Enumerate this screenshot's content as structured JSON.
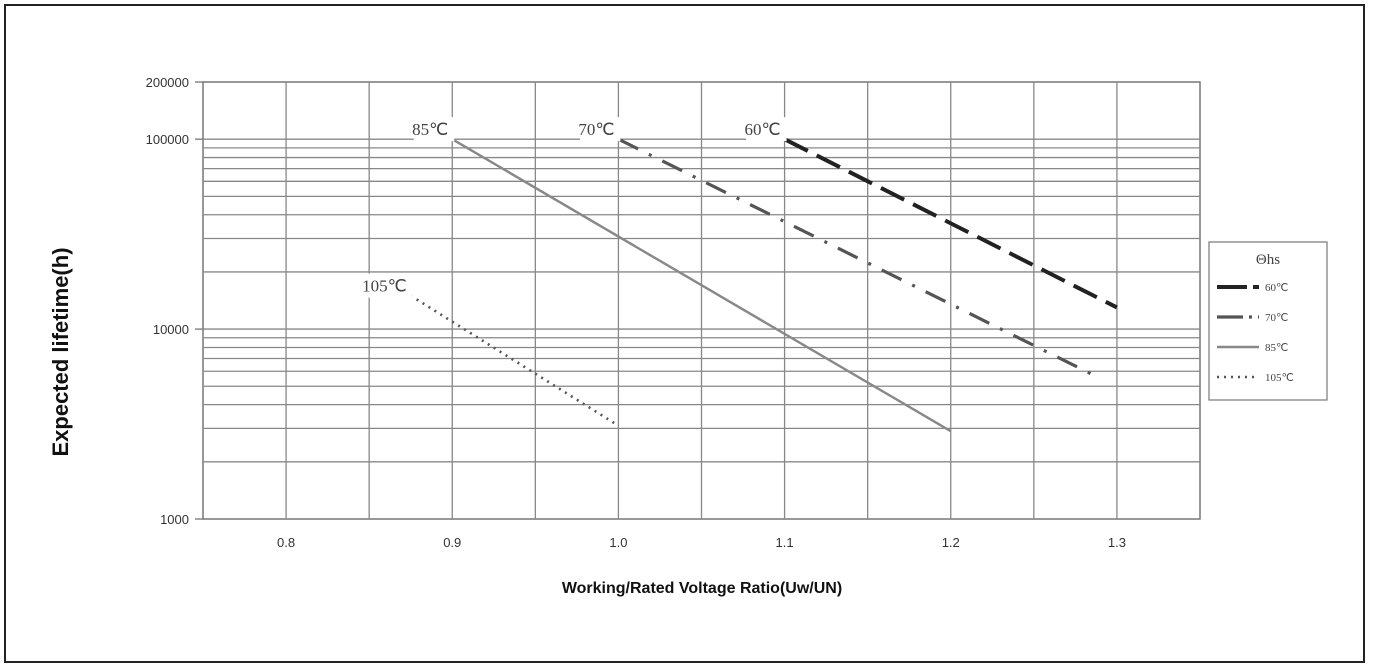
{
  "chart_data": {
    "type": "line",
    "title": "",
    "xlabel": "Working/Rated Voltage Ratio(Uw/UN)",
    "ylabel": "Expected lifetime(h)",
    "xlim": [
      0.75,
      1.35
    ],
    "ylim": [
      1000,
      200000
    ],
    "yscale": "log",
    "grid": true,
    "x_ticks": [
      0.8,
      0.9,
      1.0,
      1.1,
      1.2,
      1.3
    ],
    "x_tick_labels": [
      "0.8",
      "0.9",
      "1.0",
      "1.1",
      "1.2",
      "1.3"
    ],
    "y_tick_labels": [
      "1000",
      "10000",
      "100000",
      "200000"
    ],
    "y_ticks": [
      1000,
      10000,
      100000,
      200000
    ],
    "legend": {
      "title": "Θhs",
      "position": "right"
    },
    "series": [
      {
        "name": "60℃",
        "label": "60℃",
        "style": "dashed-thick",
        "color": "#222222",
        "x": [
          1.1,
          1.3
        ],
        "y": [
          100000,
          13000
        ]
      },
      {
        "name": "70℃",
        "label": "70℃",
        "style": "dash-dot",
        "color": "#555555",
        "x": [
          1.0,
          1.29
        ],
        "y": [
          100000,
          5500
        ]
      },
      {
        "name": "85℃",
        "label": "85℃",
        "style": "solid",
        "color": "#888888",
        "x": [
          0.9,
          1.2
        ],
        "y": [
          100000,
          2900
        ]
      },
      {
        "name": "105℃",
        "label": "105℃",
        "style": "dotted",
        "color": "#555555",
        "x": [
          0.875,
          1.0
        ],
        "y": [
          15000,
          3100
        ]
      }
    ]
  }
}
